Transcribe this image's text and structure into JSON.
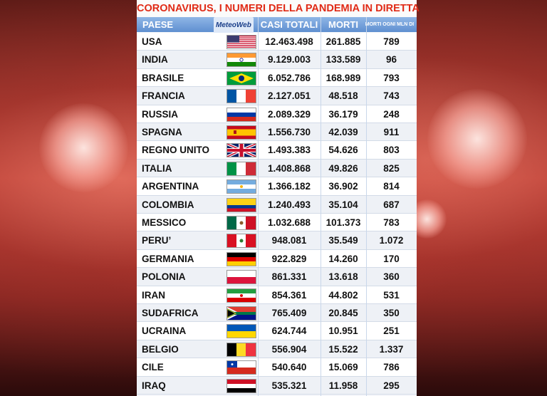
{
  "title": "CORONAVIRUS, I NUMERI DELLA PANDEMIA IN DIRETTA",
  "headers": {
    "country": "PAESE",
    "logo": "MeteoWeb",
    "total_cases": "CASI TOTALI",
    "deaths": "MORTI",
    "deaths_per_million": "MORTI OGNI MLN DI ABITANTI"
  },
  "colors": {
    "title": "#e02a16",
    "header": "#6f9ad6"
  },
  "rows": [
    {
      "country": "USA",
      "flag": "us-flag",
      "cases": "12.463.498",
      "deaths": "261.885",
      "per_million": "789"
    },
    {
      "country": "INDIA",
      "flag": "india-flag",
      "cases": "9.129.003",
      "deaths": "133.589",
      "per_million": "96"
    },
    {
      "country": "BRASILE",
      "flag": "brazil-flag",
      "cases": "6.052.786",
      "deaths": "168.989",
      "per_million": "793"
    },
    {
      "country": "FRANCIA",
      "flag": "france-flag",
      "cases": "2.127.051",
      "deaths": "48.518",
      "per_million": "743"
    },
    {
      "country": "RUSSIA",
      "flag": "russia-flag",
      "cases": "2.089.329",
      "deaths": "36.179",
      "per_million": "248"
    },
    {
      "country": "SPAGNA",
      "flag": "spain-flag",
      "cases": "1.556.730",
      "deaths": "42.039",
      "per_million": "911"
    },
    {
      "country": "REGNO UNITO",
      "flag": "uk-flag",
      "cases": "1.493.383",
      "deaths": "54.626",
      "per_million": "803"
    },
    {
      "country": "ITALIA",
      "flag": "italy-flag",
      "cases": "1.408.868",
      "deaths": "49.826",
      "per_million": "825"
    },
    {
      "country": "ARGENTINA",
      "flag": "argentina-flag",
      "cases": "1.366.182",
      "deaths": "36.902",
      "per_million": "814"
    },
    {
      "country": "COLOMBIA",
      "flag": "colombia-flag",
      "cases": "1.240.493",
      "deaths": "35.104",
      "per_million": "687"
    },
    {
      "country": "MESSICO",
      "flag": "mexico-flag",
      "cases": "1.032.688",
      "deaths": "101.373",
      "per_million": "783"
    },
    {
      "country": "PERU’",
      "flag": "peru-flag",
      "cases": "948.081",
      "deaths": "35.549",
      "per_million": "1.072"
    },
    {
      "country": "GERMANIA",
      "flag": "germany-flag",
      "cases": "922.829",
      "deaths": "14.260",
      "per_million": "170"
    },
    {
      "country": "POLONIA",
      "flag": "poland-flag",
      "cases": "861.331",
      "deaths": "13.618",
      "per_million": "360"
    },
    {
      "country": "IRAN",
      "flag": "iran-flag",
      "cases": "854.361",
      "deaths": "44.802",
      "per_million": "531"
    },
    {
      "country": "SUDAFRICA",
      "flag": "south-africa-flag",
      "cases": "765.409",
      "deaths": "20.845",
      "per_million": "350"
    },
    {
      "country": "UCRAINA",
      "flag": "ukraine-flag",
      "cases": "624.744",
      "deaths": "10.951",
      "per_million": "251"
    },
    {
      "country": "BELGIO",
      "flag": "belgium-flag",
      "cases": "556.904",
      "deaths": "15.522",
      "per_million": "1.337"
    },
    {
      "country": "CILE",
      "flag": "chile-flag",
      "cases": "540.640",
      "deaths": "15.069",
      "per_million": "786"
    },
    {
      "country": "IRAQ",
      "flag": "iraq-flag",
      "cases": "535.321",
      "deaths": "11.958",
      "per_million": "295"
    }
  ]
}
